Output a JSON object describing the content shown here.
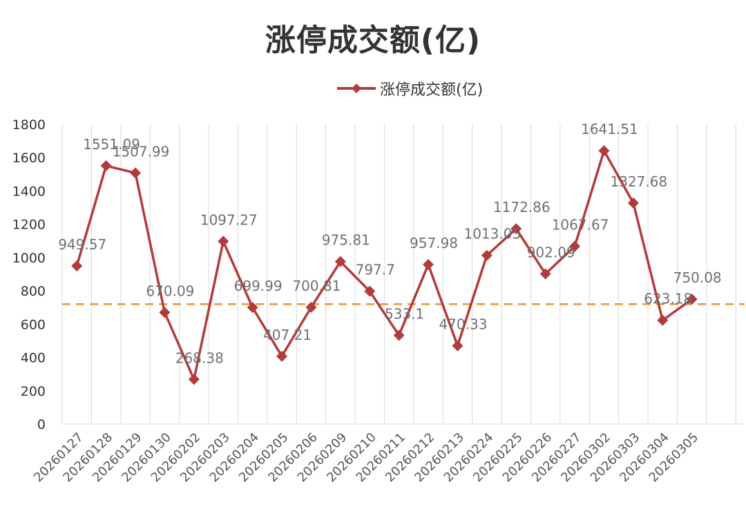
{
  "chart_data": {
    "type": "line",
    "title": "涨停成交额(亿)",
    "categories": [
      "20260127",
      "20260128",
      "20260129",
      "20260130",
      "20260202",
      "20260203",
      "20260204",
      "20260205",
      "20260206",
      "20260209",
      "20260210",
      "20260211",
      "20260212",
      "20260213",
      "20260224",
      "20260225",
      "20260226",
      "20260227",
      "20260302",
      "20260303",
      "20260304",
      "20260305"
    ],
    "series": [
      {
        "name": "涨停成交额(亿)",
        "color": "#b33a3a",
        "marker": "diamond",
        "values": [
          949.57,
          1551.09,
          1507.99,
          670.09,
          268.38,
          1097.27,
          699.99,
          407.21,
          700.81,
          975.81,
          797.7,
          533.1,
          957.98,
          470.33,
          1013.05,
          1172.86,
          902.09,
          1067.67,
          1641.51,
          1327.68,
          623.18,
          750.08
        ],
        "labels": [
          "949.57",
          "1551.09",
          "1507.99",
          "670.09",
          "268.38",
          "1097.27",
          "699.99",
          "407.21",
          "700.81",
          "975.81",
          "797.7",
          "533.1",
          "957.98",
          "470.33",
          "1013.05",
          "1172.86",
          "902.09",
          "1067.67",
          "1641.51",
          "1327.68",
          "623.18",
          "750.08"
        ]
      }
    ],
    "reference_line": {
      "value": 720,
      "color": "#e8943a",
      "style": "dashed"
    },
    "ylim": [
      0,
      1800
    ],
    "y_ticks": [
      "0",
      "200",
      "400",
      "600",
      "800",
      "1000",
      "1200",
      "1400",
      "1600",
      "1800"
    ],
    "grid": "vertical",
    "grid_color": "#d9d9d9",
    "legend_position": "top-center",
    "xlabel": "",
    "ylabel": ""
  }
}
